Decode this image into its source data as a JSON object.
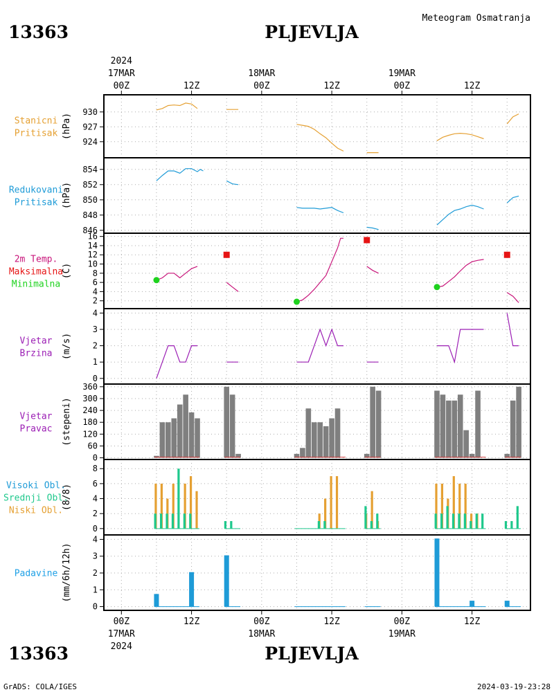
{
  "header": {
    "station_id": "13363",
    "station_name": "PLJEVLJA",
    "product_title": "Meteogram Osmatranja",
    "footer_left": "GrADS: COLA/IGES",
    "footer_right": "2024-03-19-23:28",
    "year": "2024"
  },
  "time_axis": {
    "top_labels": [
      {
        "t": 0,
        "hour": "00Z",
        "date": "17MAR",
        "year": "2024"
      },
      {
        "t": 12,
        "hour": "12Z",
        "date": "",
        "year": ""
      },
      {
        "t": 24,
        "hour": "00Z",
        "date": "18MAR",
        "year": ""
      },
      {
        "t": 36,
        "hour": "12Z",
        "date": "",
        "year": ""
      },
      {
        "t": 48,
        "hour": "00Z",
        "date": "19MAR",
        "year": ""
      },
      {
        "t": 60,
        "hour": "12Z",
        "date": "",
        "year": ""
      }
    ],
    "bottom_labels": [
      {
        "t": 0,
        "hour": "00Z",
        "date": "17MAR",
        "year": "2024"
      },
      {
        "t": 12,
        "hour": "12Z",
        "date": "",
        "year": ""
      },
      {
        "t": 24,
        "hour": "00Z",
        "date": "18MAR",
        "year": ""
      },
      {
        "t": 36,
        "hour": "12Z",
        "date": "",
        "year": ""
      },
      {
        "t": 48,
        "hour": "00Z",
        "date": "19MAR",
        "year": ""
      },
      {
        "t": 60,
        "hour": "12Z",
        "date": "",
        "year": ""
      }
    ],
    "range_hours": [
      -3,
      70
    ]
  },
  "colors": {
    "pressure_station": "#e5a032",
    "pressure_reduced": "#1e9bd7",
    "temperature": "#c8147a",
    "max_marker": "#e61414",
    "min_marker": "#1ed21e",
    "wind": "#9b1eb4",
    "wind_dir_bar": "#7f7f7f",
    "cloud_high": "#1e9bd7",
    "cloud_mid": "#1ec88c",
    "cloud_low": "#e5a032",
    "precip": "#1e9bd7",
    "precip_label": "#1ea0e6",
    "grid": "#aaaaaa"
  },
  "chart_data": [
    {
      "type": "line",
      "name": "station_pressure",
      "labels": [
        "Stanicni",
        "Pritisak"
      ],
      "unit": "(hPa)",
      "yticks": [
        924,
        927,
        930
      ],
      "ylim": [
        921.6,
        932.2
      ],
      "segments": [
        [
          [
            6,
            930.4
          ],
          [
            7,
            930.7
          ],
          [
            8,
            931.3
          ],
          [
            9,
            931.4
          ],
          [
            10,
            931.3
          ],
          [
            11,
            931.8
          ],
          [
            12,
            931.6
          ],
          [
            13,
            930.7
          ]
        ],
        [
          [
            18,
            930.5
          ],
          [
            19,
            930.5
          ],
          [
            20,
            930.5
          ]
        ],
        [
          [
            30,
            927.5
          ],
          [
            31,
            927.3
          ],
          [
            32,
            927.1
          ],
          [
            33,
            926.5
          ],
          [
            34,
            925.6
          ],
          [
            35,
            924.8
          ],
          [
            36,
            923.7
          ],
          [
            37,
            922.7
          ],
          [
            38,
            922.1
          ]
        ],
        [
          [
            42,
            921.8
          ],
          [
            43,
            921.8
          ],
          [
            44,
            921.8
          ]
        ],
        [
          [
            54,
            924.2
          ],
          [
            55,
            924.9
          ],
          [
            56,
            925.3
          ],
          [
            57,
            925.6
          ],
          [
            58,
            925.7
          ],
          [
            59,
            925.6
          ],
          [
            60,
            925.4
          ],
          [
            61,
            925.0
          ],
          [
            62,
            924.6
          ]
        ],
        [
          [
            66,
            927.6
          ],
          [
            67,
            929.0
          ],
          [
            68,
            929.6
          ]
        ]
      ]
    },
    {
      "type": "line",
      "name": "reduced_pressure",
      "labels": [
        "Redukovani",
        "Pritisak"
      ],
      "unit": "(hPa)",
      "yticks": [
        846,
        848,
        850,
        852,
        854
      ],
      "ylim": [
        845.8,
        854.8
      ],
      "segments": [
        [
          [
            6,
            852.5
          ],
          [
            7,
            853.2
          ],
          [
            8,
            853.8
          ],
          [
            9,
            853.8
          ],
          [
            10,
            853.5
          ],
          [
            11,
            854.1
          ],
          [
            12,
            854.1
          ],
          [
            13,
            853.7
          ],
          [
            13.5,
            854.0
          ],
          [
            14,
            853.8
          ]
        ],
        [
          [
            18,
            852.5
          ],
          [
            19,
            852.1
          ],
          [
            20,
            852.0
          ]
        ],
        [
          [
            30,
            849.0
          ],
          [
            31,
            848.9
          ],
          [
            32,
            848.9
          ],
          [
            33,
            848.9
          ],
          [
            34,
            848.8
          ],
          [
            35,
            848.9
          ],
          [
            36,
            849.0
          ],
          [
            37,
            848.6
          ],
          [
            38,
            848.3
          ]
        ],
        [
          [
            42,
            846.4
          ],
          [
            43,
            846.3
          ],
          [
            44,
            846.1
          ]
        ],
        [
          [
            54,
            846.7
          ],
          [
            55,
            847.4
          ],
          [
            56,
            848.1
          ],
          [
            57,
            848.6
          ],
          [
            58,
            848.8
          ],
          [
            59,
            849.1
          ],
          [
            60,
            849.3
          ],
          [
            61,
            849.1
          ],
          [
            62,
            848.8
          ]
        ],
        [
          [
            66,
            849.6
          ],
          [
            67,
            850.3
          ],
          [
            68,
            850.5
          ]
        ]
      ]
    },
    {
      "type": "line",
      "name": "temperature",
      "labels": [
        "2m Temp.",
        "Maksimalna",
        "Minimalna"
      ],
      "unit": "(C)",
      "yticks": [
        2,
        4,
        6,
        8,
        10,
        12,
        14,
        16
      ],
      "ylim": [
        0.6,
        16.4
      ],
      "segments": [
        [
          [
            6,
            6.5
          ],
          [
            7,
            7.0
          ],
          [
            8,
            8.0
          ],
          [
            9,
            8.0
          ],
          [
            10,
            7.0
          ],
          [
            11,
            8.0
          ],
          [
            12,
            9.0
          ],
          [
            13,
            9.5
          ]
        ],
        [
          [
            18,
            6.0
          ],
          [
            19,
            5.0
          ],
          [
            20,
            4.0
          ]
        ],
        [
          [
            30,
            1.8
          ],
          [
            31,
            2.2
          ],
          [
            32,
            3.2
          ],
          [
            33,
            4.5
          ],
          [
            34,
            6.0
          ],
          [
            35,
            7.5
          ],
          [
            36,
            10.5
          ],
          [
            37,
            13.5
          ],
          [
            37.5,
            15.6
          ],
          [
            38,
            15.6
          ]
        ],
        [
          [
            42,
            9.5
          ],
          [
            43,
            8.6
          ],
          [
            44,
            8.0
          ]
        ],
        [
          [
            54,
            5.0
          ],
          [
            55,
            5.2
          ],
          [
            56,
            6.2
          ],
          [
            57,
            7.2
          ],
          [
            58,
            8.5
          ],
          [
            59,
            9.7
          ],
          [
            60,
            10.5
          ],
          [
            61,
            10.8
          ],
          [
            62,
            11.0
          ]
        ],
        [
          [
            66,
            3.8
          ],
          [
            67,
            3.0
          ],
          [
            68,
            1.6
          ]
        ]
      ],
      "max_points": [
        [
          18,
          12.0
        ],
        [
          42,
          15.2
        ],
        [
          66,
          12.0
        ]
      ],
      "min_points": [
        [
          6,
          6.5
        ],
        [
          30,
          1.8
        ],
        [
          54,
          5.0
        ]
      ]
    },
    {
      "type": "line",
      "name": "wind_speed",
      "labels": [
        "Vjetar",
        "Brzina"
      ],
      "unit": "(m/s)",
      "yticks": [
        0,
        1,
        2,
        3,
        4
      ],
      "ylim": [
        -0.05,
        4.1
      ],
      "segments": [
        [
          [
            6,
            0
          ],
          [
            7,
            1
          ],
          [
            8,
            2
          ],
          [
            9,
            2
          ],
          [
            10,
            1
          ],
          [
            11,
            1
          ],
          [
            12,
            2
          ],
          [
            13,
            2
          ]
        ],
        [
          [
            18,
            1
          ],
          [
            19,
            1
          ],
          [
            20,
            1
          ]
        ],
        [
          [
            30,
            1
          ],
          [
            31,
            1
          ],
          [
            32,
            1
          ],
          [
            33,
            2
          ],
          [
            34,
            3
          ],
          [
            35,
            2
          ],
          [
            36,
            3
          ],
          [
            37,
            2
          ],
          [
            38,
            2
          ]
        ],
        [
          [
            42,
            1
          ],
          [
            43,
            1
          ],
          [
            44,
            1
          ]
        ],
        [
          [
            54,
            2
          ],
          [
            55,
            2
          ],
          [
            56,
            2
          ],
          [
            57,
            1
          ],
          [
            58,
            3
          ],
          [
            59,
            3
          ],
          [
            60,
            3
          ],
          [
            61,
            3
          ],
          [
            62,
            3
          ]
        ],
        [
          [
            66,
            4
          ],
          [
            67,
            2
          ],
          [
            68,
            2
          ]
        ]
      ]
    },
    {
      "type": "bar",
      "name": "wind_direction",
      "labels": [
        "Vjetar",
        "Pravac"
      ],
      "unit": "(stepeni)",
      "yticks": [
        0,
        60,
        120,
        180,
        240,
        300,
        360
      ],
      "ylim": [
        -5,
        370
      ],
      "bars": [
        [
          6,
          10
        ],
        [
          7,
          180
        ],
        [
          8,
          180
        ],
        [
          9,
          200
        ],
        [
          10,
          270
        ],
        [
          11,
          320
        ],
        [
          12,
          230
        ],
        [
          13,
          200
        ],
        [
          18,
          360
        ],
        [
          19,
          320
        ],
        [
          20,
          20
        ],
        [
          30,
          20
        ],
        [
          31,
          50
        ],
        [
          32,
          250
        ],
        [
          33,
          180
        ],
        [
          34,
          180
        ],
        [
          35,
          160
        ],
        [
          36,
          200
        ],
        [
          37,
          250
        ],
        [
          42,
          20
        ],
        [
          43,
          360
        ],
        [
          44,
          340
        ],
        [
          54,
          340
        ],
        [
          55,
          320
        ],
        [
          56,
          290
        ],
        [
          57,
          290
        ],
        [
          58,
          320
        ],
        [
          59,
          140
        ],
        [
          60,
          20
        ],
        [
          61,
          340
        ],
        [
          66,
          20
        ],
        [
          67,
          290
        ],
        [
          68,
          360
        ]
      ]
    },
    {
      "type": "bar",
      "name": "cloud_cover",
      "labels": [
        "Visoki Obl.",
        "Srednji Obl.",
        "Niski Obl."
      ],
      "unit": "(8/8)",
      "yticks": [
        0,
        2,
        4,
        6,
        8
      ],
      "ylim": [
        -0.2,
        8.3
      ],
      "series": [
        {
          "key": "high",
          "bars": []
        },
        {
          "key": "mid",
          "bars": [
            [
              6,
              2
            ],
            [
              7,
              2
            ],
            [
              8,
              2
            ],
            [
              9,
              2
            ],
            [
              10,
              8
            ],
            [
              11,
              2
            ],
            [
              12,
              2
            ],
            [
              18,
              1
            ],
            [
              19,
              1
            ],
            [
              34,
              1
            ],
            [
              35,
              1
            ],
            [
              42,
              3
            ],
            [
              43,
              1
            ],
            [
              44,
              2
            ],
            [
              54,
              2
            ],
            [
              55,
              2
            ],
            [
              56,
              3
            ],
            [
              57,
              2
            ],
            [
              58,
              2
            ],
            [
              59,
              2
            ],
            [
              60,
              1
            ],
            [
              61,
              2
            ],
            [
              62,
              2
            ],
            [
              66,
              1
            ],
            [
              67,
              1
            ],
            [
              68,
              3
            ]
          ]
        },
        {
          "key": "low",
          "bars": [
            [
              6,
              6
            ],
            [
              7,
              6
            ],
            [
              8,
              4
            ],
            [
              9,
              6
            ],
            [
              11,
              6
            ],
            [
              12,
              7
            ],
            [
              13,
              5
            ],
            [
              34,
              2
            ],
            [
              35,
              4
            ],
            [
              36,
              7
            ],
            [
              37,
              7
            ],
            [
              42,
              2
            ],
            [
              43,
              5
            ],
            [
              44,
              1
            ],
            [
              54,
              6
            ],
            [
              55,
              6
            ],
            [
              56,
              4
            ],
            [
              57,
              7
            ],
            [
              58,
              6
            ],
            [
              59,
              6
            ],
            [
              60,
              2
            ],
            [
              61,
              2
            ]
          ]
        }
      ]
    },
    {
      "type": "bar",
      "name": "precipitation",
      "labels": [
        "Padavine"
      ],
      "unit": "(mm/6h/12h)",
      "yticks": [
        0,
        1,
        2,
        3,
        4
      ],
      "ylim": [
        -0.1,
        4.1
      ],
      "bars": [
        [
          6,
          0.75
        ],
        [
          12,
          2.05
        ],
        [
          18,
          3.05
        ],
        [
          54,
          4.05
        ],
        [
          60,
          0.35
        ],
        [
          66,
          0.35
        ]
      ],
      "trace_ranges": [
        [
          6,
          13
        ],
        [
          18,
          20
        ],
        [
          30,
          38
        ],
        [
          42,
          44
        ],
        [
          54,
          62
        ],
        [
          66,
          68
        ]
      ]
    }
  ]
}
